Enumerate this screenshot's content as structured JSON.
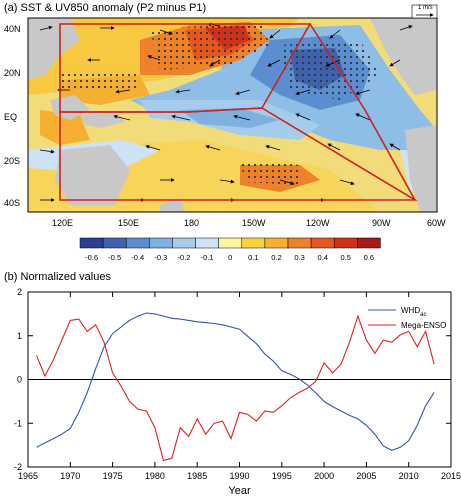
{
  "panel_a": {
    "title": "(a) SST & UV850 anomaly (P2 minus P1)",
    "ref_vector_label": "1 m/s",
    "lat_labels": [
      "40N",
      "20N",
      "EQ",
      "20S",
      "40S"
    ],
    "lon_labels": [
      "120E",
      "150E",
      "180",
      "150W",
      "120W",
      "90W",
      "60W"
    ],
    "colorbar": {
      "labels": [
        "-0.6",
        "-0.5",
        "-0.4",
        "-0.3",
        "-0.2",
        "-0.1",
        "0",
        "0.1",
        "0.2",
        "0.3",
        "0.4",
        "0.5",
        "0.6"
      ],
      "colors": [
        "#2c3f93",
        "#3e62ad",
        "#5b8ed0",
        "#7fb0df",
        "#a6ccec",
        "#cde3f5",
        "#fff4a0",
        "#f7d43c",
        "#f5b032",
        "#ee8228",
        "#e4581f",
        "#d0311a",
        "#a81a14"
      ]
    }
  },
  "chart_data": {
    "type": "line",
    "title": "(b) Normalized values",
    "xlabel": "Year",
    "ylabel": "",
    "xlim": [
      1965,
      2015
    ],
    "ylim": [
      -2,
      2
    ],
    "x_ticks": [
      1965,
      1970,
      1975,
      1980,
      1985,
      1990,
      1995,
      2000,
      2005,
      2010,
      2015
    ],
    "y_ticks": [
      -2,
      -1,
      0,
      1,
      2
    ],
    "legend_position": "top-right",
    "grid": false,
    "series": [
      {
        "name": "WHD",
        "name_subscript": "ac",
        "color": "#3355aa",
        "x": [
          1966,
          1967,
          1968,
          1969,
          1970,
          1971,
          1972,
          1973,
          1974,
          1975,
          1976,
          1977,
          1978,
          1979,
          1980,
          1981,
          1982,
          1983,
          1984,
          1985,
          1986,
          1987,
          1988,
          1989,
          1990,
          1991,
          1992,
          1993,
          1994,
          1995,
          1996,
          1997,
          1998,
          1999,
          2000,
          2001,
          2002,
          2003,
          2004,
          2005,
          2006,
          2007,
          2008,
          2009,
          2010,
          2011,
          2012,
          2013
        ],
        "values": [
          -1.55,
          -1.45,
          -1.35,
          -1.25,
          -1.12,
          -0.75,
          -0.3,
          0.25,
          0.75,
          1.05,
          1.2,
          1.35,
          1.45,
          1.52,
          1.5,
          1.45,
          1.4,
          1.38,
          1.35,
          1.32,
          1.3,
          1.28,
          1.25,
          1.2,
          1.15,
          0.98,
          0.82,
          0.58,
          0.42,
          0.2,
          0.12,
          0.02,
          -0.12,
          -0.3,
          -0.5,
          -0.62,
          -0.72,
          -0.82,
          -0.9,
          -1.05,
          -1.25,
          -1.52,
          -1.62,
          -1.55,
          -1.4,
          -1.05,
          -0.6,
          -0.3
        ]
      },
      {
        "name": "Mega-ENSO",
        "color": "#dd2222",
        "x": [
          1966,
          1967,
          1968,
          1969,
          1970,
          1971,
          1972,
          1973,
          1974,
          1975,
          1976,
          1977,
          1978,
          1979,
          1980,
          1981,
          1982,
          1983,
          1984,
          1985,
          1986,
          1987,
          1988,
          1989,
          1990,
          1991,
          1992,
          1993,
          1994,
          1995,
          1996,
          1997,
          1998,
          1999,
          2000,
          2001,
          2002,
          2003,
          2004,
          2005,
          2006,
          2007,
          2008,
          2009,
          2010,
          2011,
          2012,
          2013
        ],
        "values": [
          0.55,
          0.08,
          0.45,
          0.9,
          1.35,
          1.38,
          1.1,
          1.25,
          0.85,
          0.15,
          -0.15,
          -0.5,
          -0.68,
          -0.72,
          -1.1,
          -1.85,
          -1.8,
          -1.1,
          -1.3,
          -0.9,
          -1.25,
          -1.0,
          -0.95,
          -1.35,
          -0.75,
          -0.8,
          -0.95,
          -0.72,
          -0.75,
          -0.6,
          -0.42,
          -0.3,
          -0.2,
          -0.05,
          0.38,
          0.15,
          0.35,
          0.85,
          1.45,
          0.9,
          0.6,
          0.9,
          0.85,
          1.02,
          1.1,
          0.75,
          1.1,
          0.35
        ]
      }
    ]
  }
}
